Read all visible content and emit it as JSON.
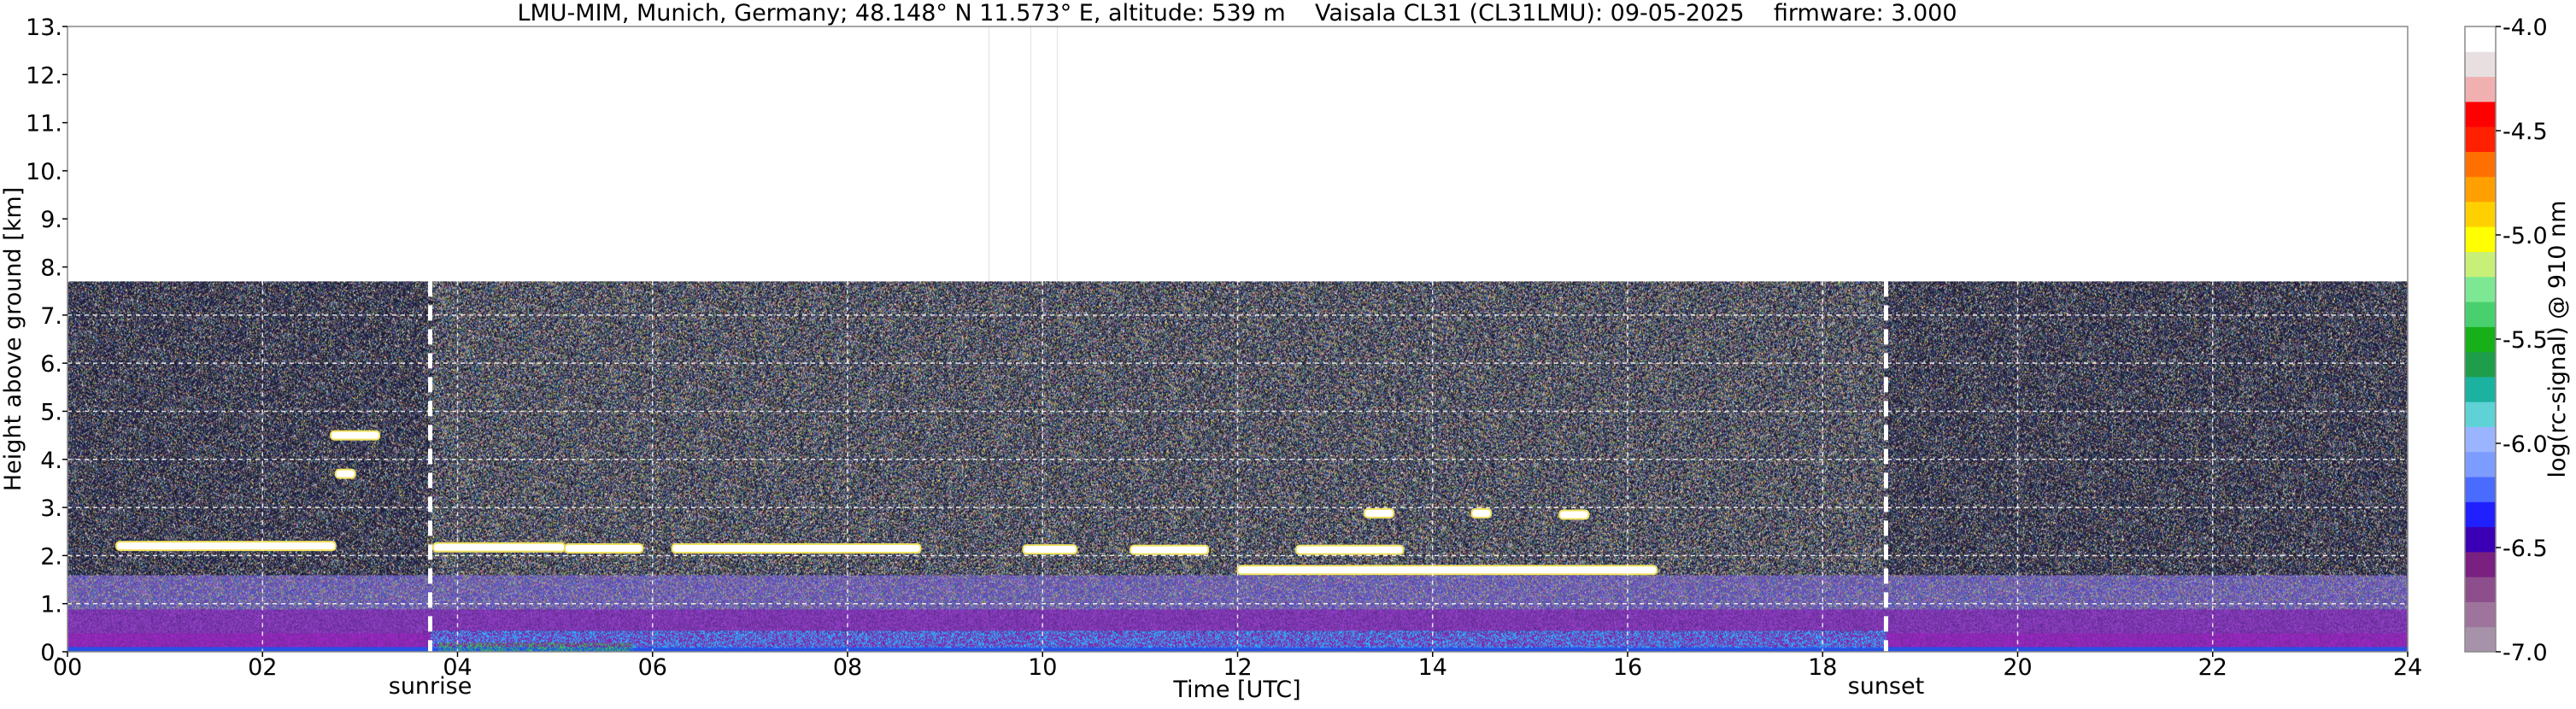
{
  "chart_data": {
    "type": "heatmap",
    "title": "LMU-MIM, Munich, Germany; 48.148° N 11.573° E, altitude: 539 m    Vaisala CL31 (CL31LMU): 09-05-2025    firmware: 3.000",
    "xlabel": "Time [UTC]",
    "ylabel": "Height above ground [km]",
    "colorbar_label": "log(rc-signal) @ 910 nm",
    "xlim": [
      0,
      24
    ],
    "ylim": [
      0,
      13
    ],
    "x_ticks": [
      0,
      2,
      4,
      6,
      8,
      10,
      12,
      14,
      16,
      18,
      20,
      22,
      24
    ],
    "x_tick_labels": [
      "00",
      "02",
      "04",
      "06",
      "08",
      "10",
      "12",
      "14",
      "16",
      "18",
      "20",
      "22",
      "24"
    ],
    "y_ticks": [
      0,
      1,
      2,
      3,
      4,
      5,
      6,
      7,
      8,
      9,
      10,
      11,
      12,
      13
    ],
    "y_tick_labels": [
      "0.",
      "1.",
      "2.",
      "3.",
      "4.",
      "5.",
      "6.",
      "7.",
      "8.",
      "9.",
      "10.",
      "11.",
      "12.",
      "13."
    ],
    "grid": true,
    "colorbar_range": [
      -7.0,
      -4.0
    ],
    "colorbar_ticks": [
      -7.0,
      -6.5,
      -6.0,
      -5.5,
      -5.0,
      -4.5,
      -4.0
    ],
    "colorbar_tick_labels": [
      "-7.0",
      "-6.5",
      "-6.0",
      "-5.5",
      "-5.0",
      "-4.5",
      "-4.0"
    ],
    "colormap": [
      "#a793a9",
      "#9e749c",
      "#8d4f8b",
      "#7a2080",
      "#3b00b5",
      "#2020ff",
      "#4a6bff",
      "#7d9cff",
      "#9bb4ff",
      "#5fd2d6",
      "#1bb3a0",
      "#1e9e4a",
      "#18b018",
      "#48d06e",
      "#7ce894",
      "#c8f078",
      "#ffff00",
      "#ffd000",
      "#ffa000",
      "#ff7000",
      "#ff2000",
      "#ff0000",
      "#f0b0b0",
      "#e8e0e0",
      "#ffffff"
    ],
    "data_top_km": 7.7,
    "events": [
      {
        "label": "sunrise",
        "time": 3.72
      },
      {
        "label": "sunset",
        "time": 18.65
      }
    ],
    "cloud_layers": [
      {
        "t0": 0.5,
        "t1": 2.75,
        "height_km": 2.2
      },
      {
        "t0": 3.75,
        "t1": 5.1,
        "height_km": 2.17
      },
      {
        "t0": 5.1,
        "t1": 5.9,
        "height_km": 2.15
      },
      {
        "t0": 6.2,
        "t1": 8.75,
        "height_km": 2.15
      },
      {
        "t0": 9.8,
        "t1": 10.35,
        "height_km": 2.13
      },
      {
        "t0": 10.9,
        "t1": 11.7,
        "height_km": 2.12
      },
      {
        "t0": 12.6,
        "t1": 13.7,
        "height_km": 2.12
      },
      {
        "t0": 12.0,
        "t1": 16.3,
        "height_km": 1.7
      },
      {
        "t0": 2.7,
        "t1": 3.2,
        "height_km": 4.5
      },
      {
        "t0": 2.75,
        "t1": 2.95,
        "height_km": 3.7
      },
      {
        "t0": 13.3,
        "t1": 13.6,
        "height_km": 2.88
      },
      {
        "t0": 14.4,
        "t1": 14.6,
        "height_km": 2.88
      },
      {
        "t0": 15.3,
        "t1": 15.6,
        "height_km": 2.85
      }
    ]
  }
}
